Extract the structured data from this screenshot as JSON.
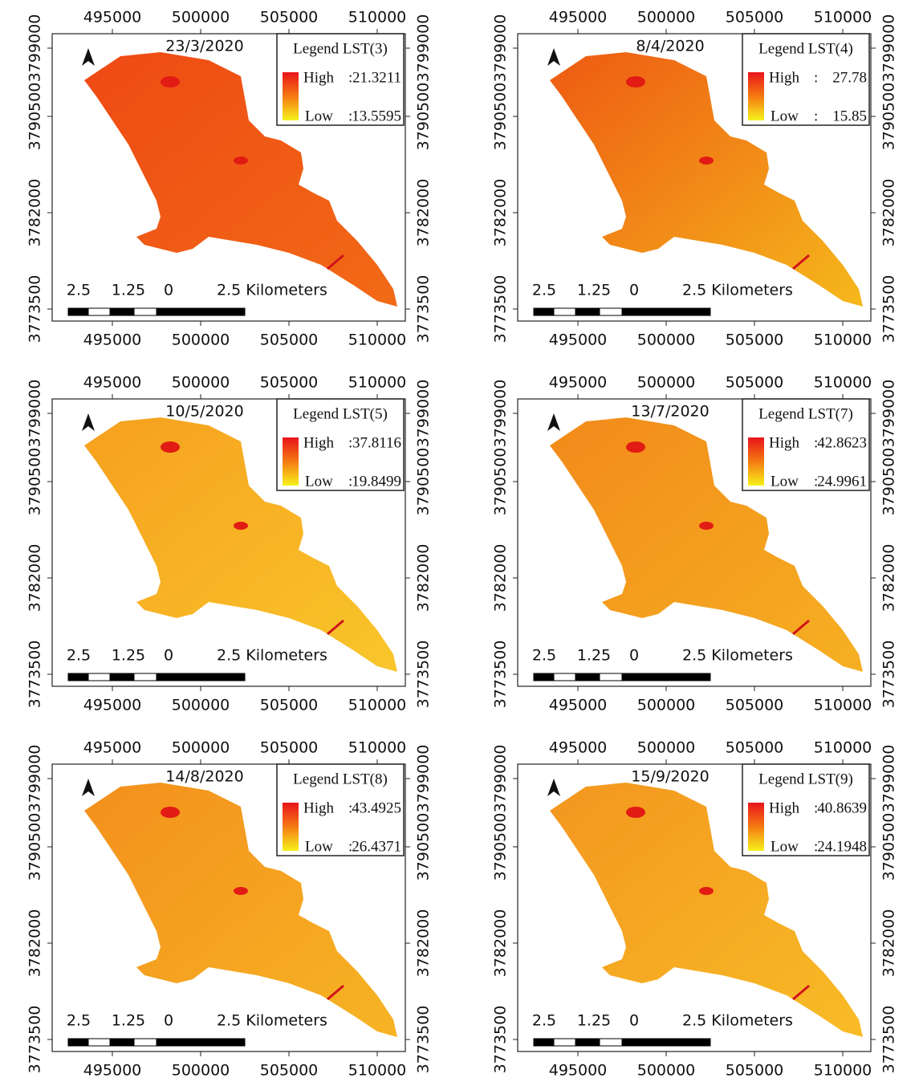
{
  "axes": {
    "x_ticks": [
      495000,
      500000,
      505000,
      510000
    ],
    "y_ticks": [
      3799000,
      3790500,
      3782000,
      3773500
    ]
  },
  "scale_bar": {
    "labels": [
      "2.5",
      "1.25",
      "0",
      "2.5 Kilometers"
    ]
  },
  "legend_labels": {
    "high": "High",
    "low": "Low",
    "separator": ":"
  },
  "panels": [
    {
      "date": "23/3/2020",
      "legend_title": "Legend LST(3)",
      "high": 21.3211,
      "low": 13.5595
    },
    {
      "date": "8/4/2020",
      "legend_title": "Legend LST(4)",
      "high": 27.78,
      "low": 15.85
    },
    {
      "date": "10/5/2020",
      "legend_title": "Legend LST(5)",
      "high": 37.8116,
      "low": 19.8499
    },
    {
      "date": "13/7/2020",
      "legend_title": "Legend LST(7)",
      "high": 42.8623,
      "low": 24.9961
    },
    {
      "date": "14/8/2020",
      "legend_title": "Legend LST(8)",
      "high": 43.4925,
      "low": 26.4371
    },
    {
      "date": "15/9/2020",
      "legend_title": "Legend LST(9)",
      "high": 40.8639,
      "low": 24.1948
    }
  ]
}
